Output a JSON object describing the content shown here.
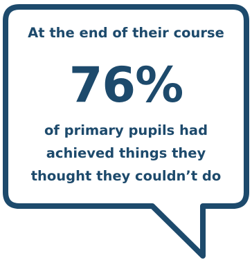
{
  "colors": {
    "bubble_stroke": "#1d4a6c",
    "text": "#1d4a6c",
    "background": "#ffffff"
  },
  "callout": {
    "lead": "At the end of their course",
    "stat": "76%",
    "desc_lines": [
      "of primary pupils had",
      "achieved things they",
      "thought they couldn’t do"
    ]
  }
}
